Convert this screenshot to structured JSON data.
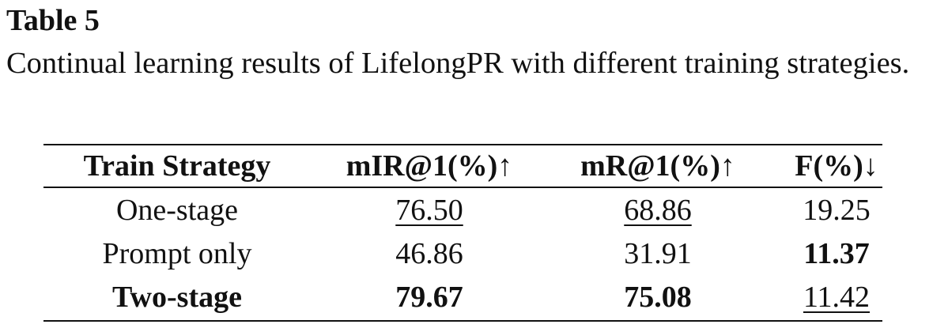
{
  "table_label": "Table 5",
  "caption": "Continual learning results of LifelongPR with different training strategies.",
  "table": {
    "header": [
      "Train Strategy",
      "mIR@1(%)↑",
      "mR@1(%)↑",
      "F(%)↓"
    ],
    "rows": [
      [
        "One-stage",
        "76.50",
        "68.86",
        "19.25"
      ],
      [
        "Prompt only",
        "46.86",
        "31.91",
        "11.37"
      ],
      [
        "Two-stage",
        "79.67",
        "75.08",
        "11.42"
      ]
    ]
  }
}
